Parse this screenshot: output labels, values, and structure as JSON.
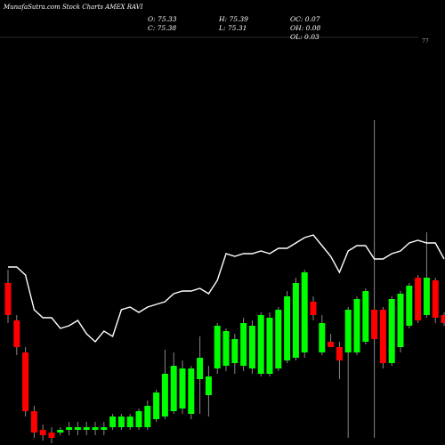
{
  "header": {
    "brand": "MunafaSutra.com",
    "title": "Stock Charts AMEX RAVI",
    "o_label": "O: 75.33",
    "c_label": "C: 75.38",
    "h_label": "H: 75.39",
    "l_label": "L: 75.31",
    "oc_label": "OC: 0.07",
    "oh_label": "OH: 0.08",
    "ol_label": "OL: 0.03"
  },
  "chart_data": {
    "type": "candlestick",
    "price_axis_label": "77",
    "up_color": "#00ff00",
    "down_color": "#ff0000",
    "line_color": "#ffffff",
    "line_series": [
      0.6,
      0.6,
      0.57,
      0.44,
      0.41,
      0.41,
      0.37,
      0.38,
      0.4,
      0.35,
      0.32,
      0.36,
      0.34,
      0.44,
      0.45,
      0.43,
      0.45,
      0.46,
      0.47,
      0.5,
      0.51,
      0.51,
      0.52,
      0.5,
      0.55,
      0.65,
      0.64,
      0.65,
      0.65,
      0.66,
      0.65,
      0.67,
      0.67,
      0.69,
      0.71,
      0.72,
      0.68,
      0.64,
      0.58,
      0.66,
      0.68,
      0.68,
      0.63,
      0.63,
      0.65,
      0.66,
      0.69,
      0.7,
      0.69,
      0.69,
      0.63
    ],
    "candles": [
      {
        "o": 0.54,
        "c": 0.42,
        "h": 0.59,
        "l": 0.39
      },
      {
        "o": 0.4,
        "c": 0.3,
        "h": 0.42,
        "l": 0.27
      },
      {
        "o": 0.28,
        "c": 0.06,
        "h": 0.3,
        "l": 0.04
      },
      {
        "o": 0.06,
        "c": -0.02,
        "h": 0.08,
        "l": -0.04
      },
      {
        "o": -0.01,
        "c": -0.03,
        "h": 0.01,
        "l": -0.05
      },
      {
        "o": -0.02,
        "c": -0.04,
        "h": 0.0,
        "l": -0.06
      },
      {
        "o": -0.02,
        "c": -0.01,
        "h": 0.0,
        "l": -0.03
      },
      {
        "o": -0.01,
        "c": 0.0,
        "h": 0.02,
        "l": -0.03
      },
      {
        "o": -0.01,
        "c": 0.0,
        "h": 0.02,
        "l": -0.03
      },
      {
        "o": -0.01,
        "c": 0.0,
        "h": 0.02,
        "l": -0.03
      },
      {
        "o": -0.01,
        "c": 0.0,
        "h": 0.02,
        "l": -0.03
      },
      {
        "o": -0.01,
        "c": 0.0,
        "h": 0.02,
        "l": -0.03
      },
      {
        "o": 0.0,
        "c": 0.04,
        "h": 0.05,
        "l": -0.01
      },
      {
        "o": 0.0,
        "c": 0.04,
        "h": 0.05,
        "l": -0.01
      },
      {
        "o": 0.0,
        "c": 0.04,
        "h": 0.05,
        "l": -0.01
      },
      {
        "o": 0.0,
        "c": 0.06,
        "h": 0.07,
        "l": -0.01
      },
      {
        "o": 0.0,
        "c": 0.08,
        "h": 0.1,
        "l": -0.01
      },
      {
        "o": 0.03,
        "c": 0.13,
        "h": 0.14,
        "l": 0.02
      },
      {
        "o": 0.04,
        "c": 0.2,
        "h": 0.29,
        "l": 0.03
      },
      {
        "o": 0.06,
        "c": 0.23,
        "h": 0.28,
        "l": 0.05
      },
      {
        "o": 0.07,
        "c": 0.22,
        "h": 0.25,
        "l": 0.05
      },
      {
        "o": 0.05,
        "c": 0.22,
        "h": 0.23,
        "l": 0.03
      },
      {
        "o": 0.18,
        "c": 0.26,
        "h": 0.34,
        "l": 0.05
      },
      {
        "o": 0.12,
        "c": 0.19,
        "h": 0.23,
        "l": 0.04
      },
      {
        "o": 0.22,
        "c": 0.38,
        "h": 0.39,
        "l": 0.2
      },
      {
        "o": 0.23,
        "c": 0.36,
        "h": 0.37,
        "l": 0.21
      },
      {
        "o": 0.24,
        "c": 0.33,
        "h": 0.35,
        "l": 0.2
      },
      {
        "o": 0.23,
        "c": 0.39,
        "h": 0.41,
        "l": 0.21
      },
      {
        "o": 0.22,
        "c": 0.38,
        "h": 0.4,
        "l": 0.2
      },
      {
        "o": 0.2,
        "c": 0.42,
        "h": 0.43,
        "l": 0.19
      },
      {
        "o": 0.2,
        "c": 0.41,
        "h": 0.43,
        "l": 0.19
      },
      {
        "o": 0.22,
        "c": 0.44,
        "h": 0.45,
        "l": 0.21
      },
      {
        "o": 0.25,
        "c": 0.49,
        "h": 0.51,
        "l": 0.24
      },
      {
        "o": 0.26,
        "c": 0.54,
        "h": 0.56,
        "l": 0.25
      },
      {
        "o": 0.28,
        "c": 0.58,
        "h": 0.59,
        "l": 0.26
      },
      {
        "o": 0.47,
        "c": 0.42,
        "h": 0.49,
        "l": 0.4
      },
      {
        "o": 0.28,
        "c": 0.39,
        "h": 0.42,
        "l": 0.27
      },
      {
        "o": 0.32,
        "c": 0.3,
        "h": 0.35,
        "l": 0.3
      },
      {
        "o": 0.3,
        "c": 0.25,
        "h": 0.32,
        "l": 0.18
      },
      {
        "o": 0.28,
        "c": 0.44,
        "h": 0.45,
        "l": -0.04
      },
      {
        "o": 0.28,
        "c": 0.48,
        "h": 0.49,
        "l": 0.27
      },
      {
        "o": 0.32,
        "c": 0.51,
        "h": 0.52,
        "l": 0.31
      },
      {
        "o": 0.44,
        "c": 0.33,
        "h": 1.15,
        "l": -0.04
      },
      {
        "o": 0.44,
        "c": 0.24,
        "h": 0.45,
        "l": 0.22
      },
      {
        "o": 0.24,
        "c": 0.48,
        "h": 0.49,
        "l": 0.23
      },
      {
        "o": 0.3,
        "c": 0.5,
        "h": 0.51,
        "l": 0.28
      },
      {
        "o": 0.38,
        "c": 0.53,
        "h": 0.54,
        "l": 0.37
      },
      {
        "o": 0.56,
        "c": 0.4,
        "h": 0.57,
        "l": 0.39
      },
      {
        "o": 0.42,
        "c": 0.56,
        "h": 0.73,
        "l": 0.41
      },
      {
        "o": 0.55,
        "c": 0.41,
        "h": 0.56,
        "l": 0.39
      },
      {
        "o": 0.42,
        "c": 0.39,
        "h": 0.43,
        "l": 0.38
      }
    ]
  }
}
